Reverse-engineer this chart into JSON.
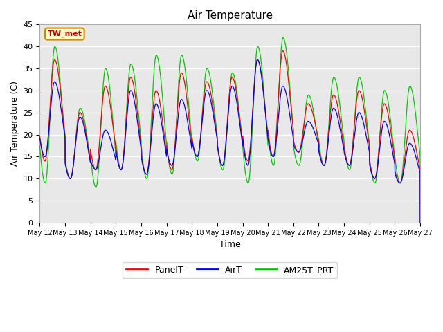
{
  "title": "Air Temperature",
  "ylabel": "Air Temperature (C)",
  "xlabel": "Time",
  "ylim": [
    0,
    45
  ],
  "fig_bg_color": "#ffffff",
  "plot_bg_color": "#e8e8e8",
  "grid_color": "#ffffff",
  "station_label": "TW_met",
  "station_box_facecolor": "#ffffcc",
  "station_box_edgecolor": "#cc8800",
  "legend_labels": [
    "PanelT",
    "AirT",
    "AM25T_PRT"
  ],
  "legend_colors": [
    "#ff0000",
    "#0000ff",
    "#00cc00"
  ],
  "xtick_labels": [
    "May 12",
    "May 13",
    "May 14",
    "May 15",
    "May 16",
    "May 17",
    "May 18",
    "May 19",
    "May 20",
    "May 21",
    "May 22",
    "May 23",
    "May 24",
    "May 25",
    "May 26",
    "May 27"
  ],
  "n_days": 15,
  "yticks": [
    0,
    5,
    10,
    15,
    20,
    25,
    30,
    35,
    40,
    45
  ],
  "diurnal_peak_hour": 14,
  "diurnal_trough_hour": 5,
  "day_peaks_air": [
    32,
    24,
    21,
    30,
    27,
    28,
    30,
    31,
    37,
    31,
    23,
    26,
    25,
    23,
    18,
    18
  ],
  "day_troughs_air": [
    15,
    10,
    12,
    12,
    11,
    13,
    15,
    13,
    13,
    15,
    16,
    13,
    13,
    10,
    9,
    13
  ],
  "day_peaks_panel": [
    37,
    25,
    31,
    33,
    30,
    34,
    32,
    33,
    37,
    39,
    27,
    29,
    30,
    27,
    21,
    18
  ],
  "day_troughs_panel": [
    14,
    10,
    12,
    12,
    11,
    12,
    15,
    13,
    14,
    15,
    16,
    13,
    13,
    10,
    9,
    13
  ],
  "day_peaks_am25": [
    40,
    26,
    35,
    36,
    38,
    38,
    35,
    34,
    40,
    42,
    29,
    33,
    33,
    30,
    31,
    31
  ],
  "day_troughs_am25": [
    9,
    10,
    8,
    12,
    10,
    11,
    14,
    12,
    9,
    13,
    13,
    13,
    12,
    9,
    9,
    13
  ]
}
